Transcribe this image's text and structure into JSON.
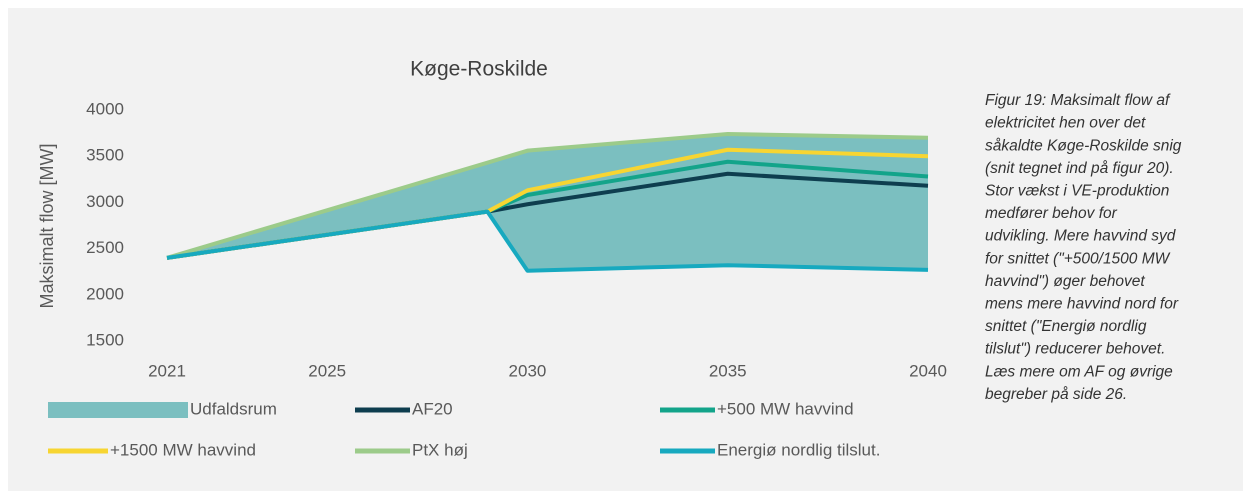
{
  "chart_data": {
    "type": "line",
    "title": "Køge-Roskilde",
    "y_label": "Maksimalt flow [MW]",
    "x": [
      2021,
      2029,
      2030,
      2035,
      2040
    ],
    "xlim": [
      2021,
      2040
    ],
    "xticks": [
      2021,
      2025,
      2030,
      2035,
      2040
    ],
    "ylim": [
      1500,
      4000
    ],
    "yticks": [
      1500,
      2000,
      2500,
      3000,
      3500,
      4000
    ],
    "series": [
      {
        "name": "Udfaldsrum",
        "type": "area",
        "color": "#7bbfc0",
        "values": [
          2400,
          3430,
          3560,
          3740,
          3700
        ],
        "lower": [
          2400,
          2900,
          2260,
          2320,
          2270
        ]
      },
      {
        "name": "AF20",
        "color": "#0e3e4f",
        "values": [
          2400,
          2900,
          2980,
          3310,
          3180
        ]
      },
      {
        "name": "+500 MW havvind",
        "color": "#13a48a",
        "values": [
          2400,
          2900,
          3080,
          3440,
          3280
        ]
      },
      {
        "name": "+1500 MW havvind",
        "color": "#f7d532",
        "values": [
          2400,
          2900,
          3130,
          3570,
          3500
        ]
      },
      {
        "name": "PtX høj",
        "color": "#9ccb8a",
        "values": [
          2400,
          3430,
          3560,
          3740,
          3700
        ]
      },
      {
        "name": "Energiø nordlig tilslut.",
        "color": "#17a9bf",
        "values": [
          2400,
          2900,
          2260,
          2320,
          2270
        ]
      }
    ]
  },
  "caption": [
    "Figur 19: Maksimalt flow af",
    "elektricitet hen over det",
    "såkaldte Køge-Roskilde snig",
    "(snit tegnet ind på figur 20).",
    "Stor vækst i VE-produktion",
    "medfører behov for",
    "udvikling. Mere havvind syd",
    "for snittet (\"+500/1500 MW",
    "havvind\") øger behovet",
    "mens mere havvind nord for",
    "snittet (\"Energiø nordlig",
    "tilslut\") reducerer behovet.",
    "Læs mere om AF og øvrige",
    "begreber på side 26."
  ]
}
